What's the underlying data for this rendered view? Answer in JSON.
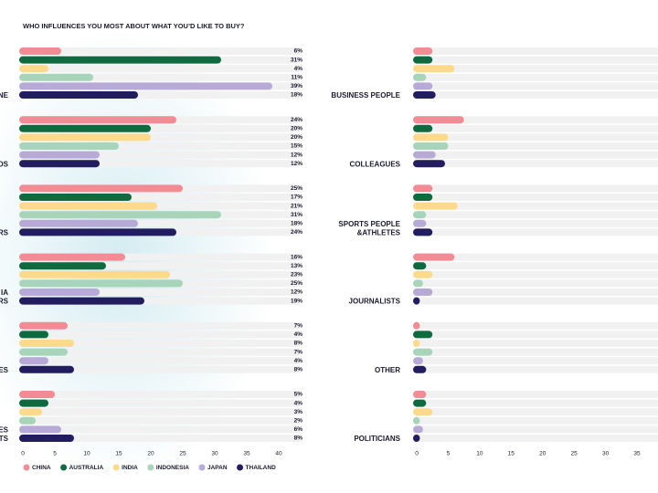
{
  "chart_data": [
    {
      "type": "bar",
      "orientation": "horizontal",
      "title": "WHO INFLUENCES YOU MOST ABOUT WHAT YOU’D LIKE TO BUY?",
      "categories": [
        "NE",
        "DS",
        "RS",
        "IA\nRS",
        "ES",
        "ES\nTS"
      ],
      "series": [
        {
          "name": "CHINA",
          "color": "#f28b94",
          "values": [
            6,
            24,
            25,
            16,
            7,
            5
          ],
          "value_labels": [
            "6%",
            "24%",
            "25%",
            "16%",
            "7%",
            "5%"
          ]
        },
        {
          "name": "AUSTRALIA",
          "color": "#0f6b3f",
          "values": [
            31,
            20,
            17,
            13,
            4,
            4
          ],
          "value_labels": [
            "31%",
            "20%",
            "17%",
            "13%",
            "4%",
            "4%"
          ]
        },
        {
          "name": "INDIA",
          "color": "#fcd98b",
          "values": [
            4,
            20,
            21,
            23,
            8,
            3
          ],
          "value_labels": [
            "4%",
            "20%",
            "21%",
            "23%",
            "8%",
            "3%"
          ]
        },
        {
          "name": "INDONESIA",
          "color": "#a8d4b9",
          "values": [
            11,
            15,
            31,
            25,
            7,
            2
          ],
          "value_labels": [
            "11%",
            "15%",
            "31%",
            "25%",
            "7%",
            "2%"
          ]
        },
        {
          "name": "JAPAN",
          "color": "#b8aad7",
          "values": [
            39,
            12,
            18,
            12,
            4,
            6
          ],
          "value_labels": [
            "39%",
            "12%",
            "18%",
            "12%",
            "4%",
            "6%"
          ]
        },
        {
          "name": "THAILAND",
          "color": "#221d5f",
          "values": [
            18,
            12,
            24,
            19,
            8,
            8
          ],
          "value_labels": [
            "18%",
            "12%",
            "24%",
            "19%",
            "8%",
            "8%"
          ]
        }
      ],
      "xlim": [
        0,
        40
      ],
      "xticks": [
        0,
        5,
        10,
        15,
        20,
        25,
        30,
        35,
        40
      ]
    },
    {
      "type": "bar",
      "orientation": "horizontal",
      "categories": [
        "BUSINESS PEOPLE",
        "COLLEAGUES",
        "SPORTS PEOPLE\n&ATHLETES",
        "JOURNALISTS",
        "OTHER",
        "POLITICIANS"
      ],
      "series": [
        {
          "values": [
            2.5,
            7.5,
            2.5,
            6,
            0.5,
            1.5
          ]
        },
        {
          "values": [
            2.5,
            2.5,
            2.5,
            1.5,
            2.5,
            1.5
          ]
        },
        {
          "values": [
            6,
            5,
            6.5,
            2.5,
            0.5,
            2.5
          ]
        },
        {
          "values": [
            1.5,
            5,
            1.5,
            1,
            2.5,
            0.5
          ]
        },
        {
          "values": [
            2.5,
            3,
            1.5,
            2.5,
            1,
            1
          ]
        },
        {
          "values": [
            3,
            4.5,
            2.5,
            0.5,
            1.5,
            0.5
          ]
        }
      ],
      "xlim": [
        0,
        35
      ],
      "xticks": [
        0,
        5,
        10,
        15,
        20,
        25,
        30,
        35
      ]
    }
  ]
}
